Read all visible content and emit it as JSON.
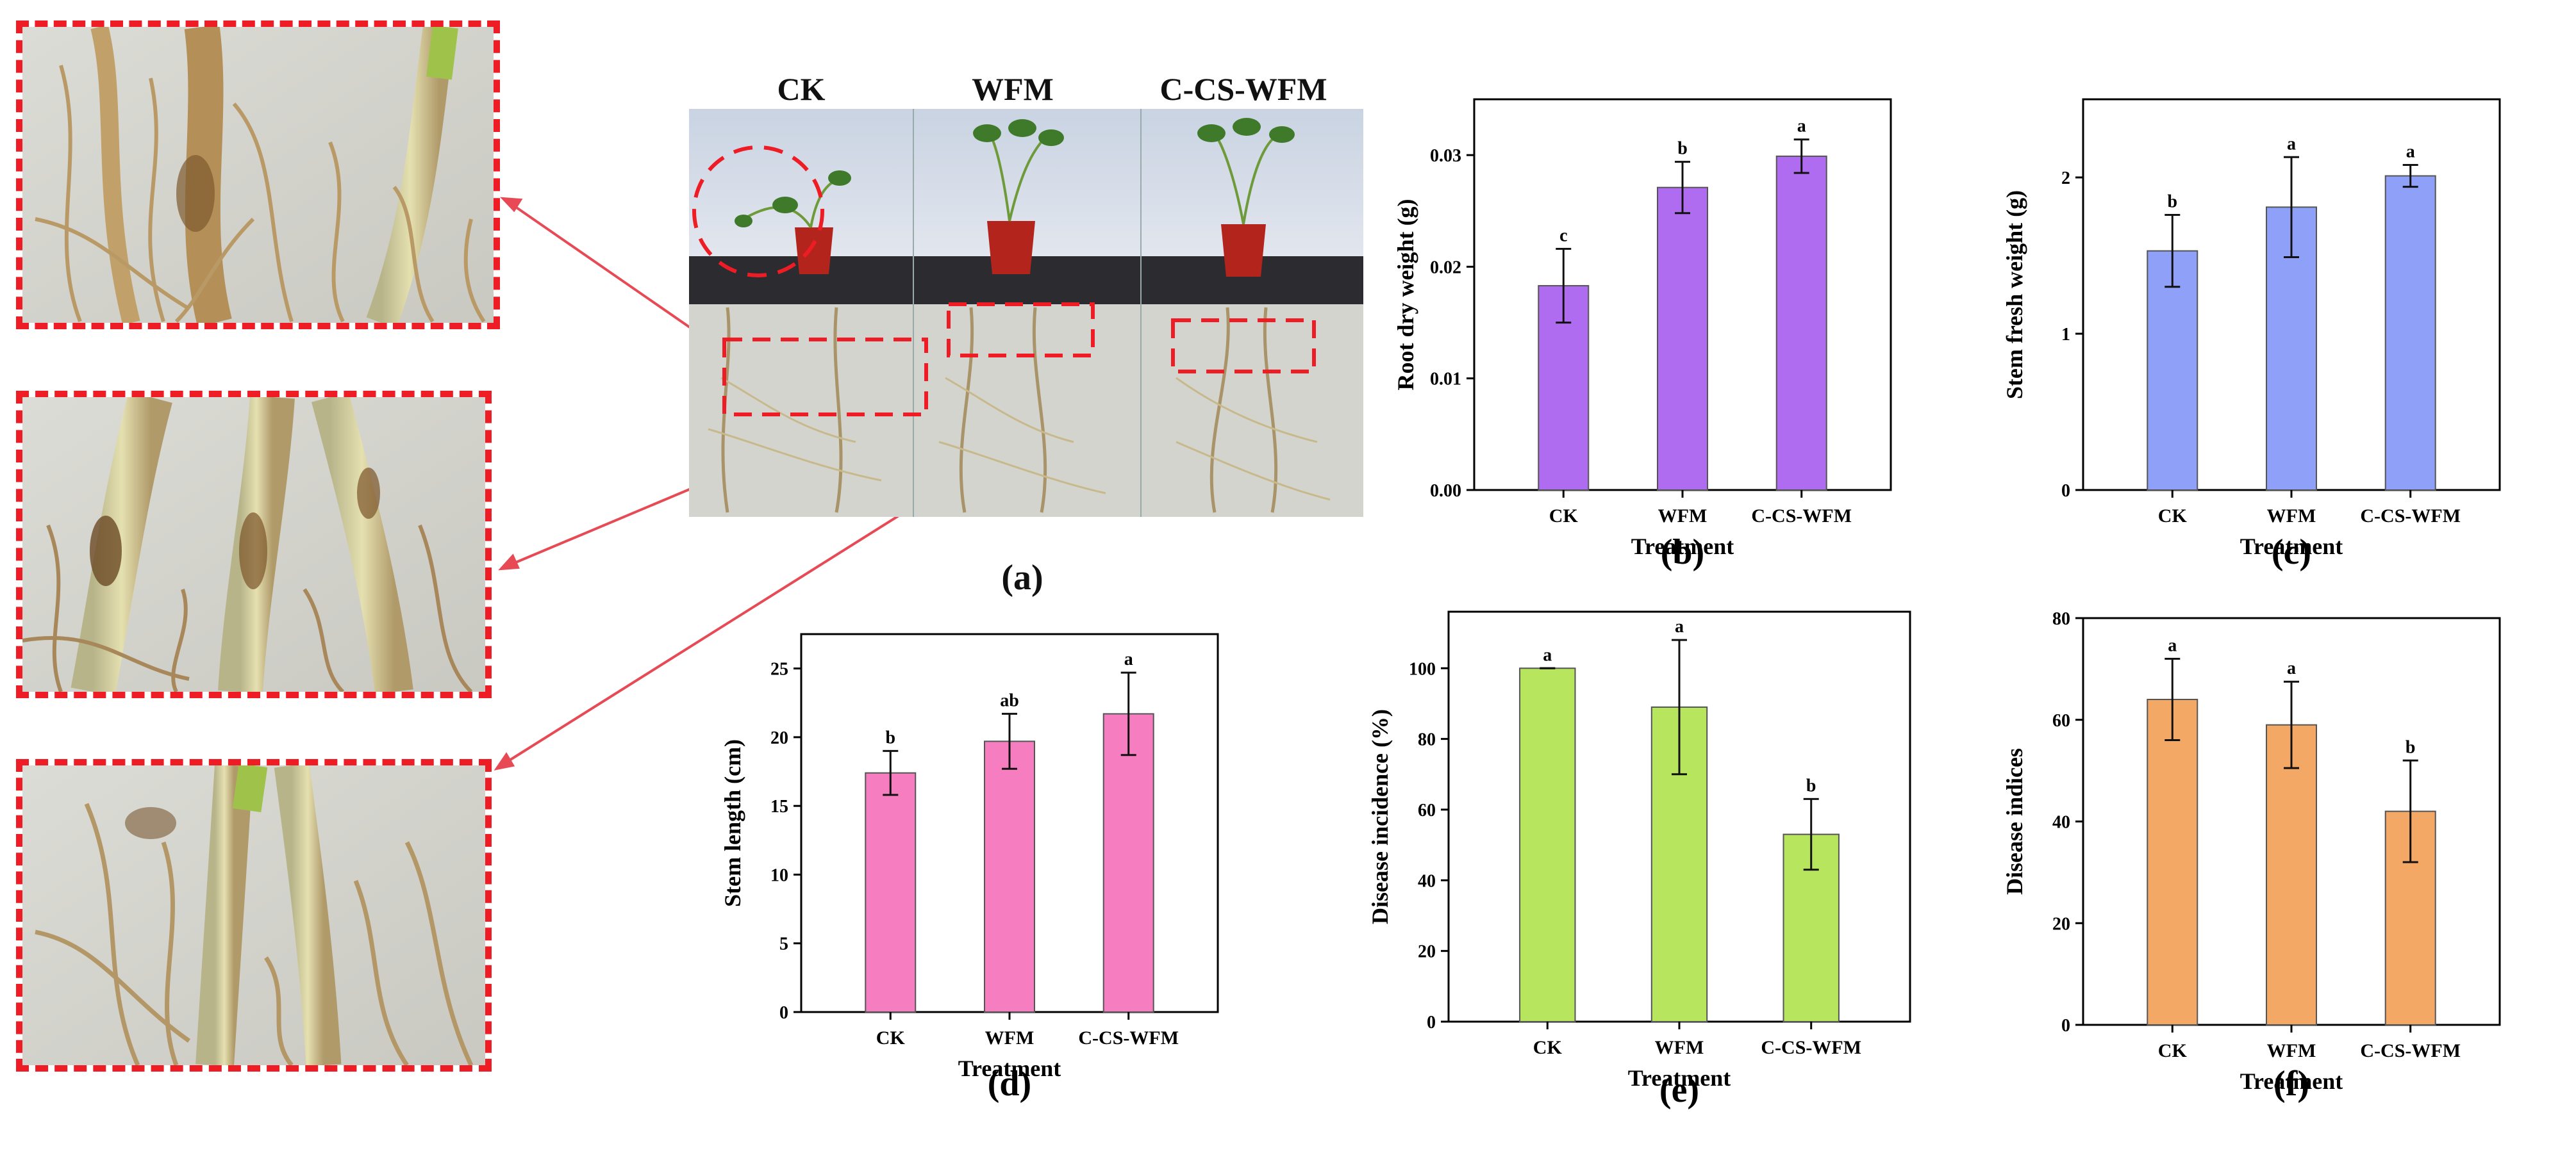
{
  "photo": {
    "headers": [
      "CK",
      "WFM",
      "C-CS-WFM"
    ],
    "panel_label": "(a)"
  },
  "colors": {
    "highlight": "#ee1c25",
    "arrow": "#e84a55",
    "purple": "#b06cf0",
    "blue": "#8ea0f7",
    "pink": "#f67dbf",
    "green": "#b7e65e",
    "orange": "#f4a866"
  },
  "chart_data": [
    {
      "id": "b",
      "panel_label": "(b)",
      "type": "bar",
      "categories": [
        "CK",
        "WFM",
        "C-CS-WFM"
      ],
      "values": [
        0.0183,
        0.0271,
        0.0299
      ],
      "errors": [
        0.0033,
        0.0023,
        0.0015
      ],
      "letters": [
        "c",
        "b",
        "a"
      ],
      "xlabel": "Treatment",
      "ylabel": "Root dry weight (g)",
      "ylim": [
        0,
        0.035
      ],
      "yticks": [
        0,
        0.01,
        0.02,
        0.03
      ],
      "ytick_labels": [
        "0.00",
        "0.01",
        "0.02",
        "0.03"
      ],
      "color": "#b06cf0"
    },
    {
      "id": "c",
      "panel_label": "(c)",
      "type": "bar",
      "categories": [
        "CK",
        "WFM",
        "C-CS-WFM"
      ],
      "values": [
        1.53,
        1.81,
        2.01
      ],
      "errors": [
        0.23,
        0.32,
        0.07
      ],
      "letters": [
        "b",
        "a",
        "a"
      ],
      "xlabel": "Treatment",
      "ylabel": "Stem fresh weight (g)",
      "ylim": [
        0,
        2.5
      ],
      "yticks": [
        0,
        1,
        2
      ],
      "ytick_labels": [
        "0",
        "1",
        "2"
      ],
      "color": "#8ea0f7"
    },
    {
      "id": "d",
      "panel_label": "(d)",
      "type": "bar",
      "categories": [
        "CK",
        "WFM",
        "C-CS-WFM"
      ],
      "values": [
        17.4,
        19.7,
        21.7
      ],
      "errors": [
        1.6,
        2.0,
        3.0
      ],
      "letters": [
        "b",
        "ab",
        "a"
      ],
      "xlabel": "Treatment",
      "ylabel": "Stem length (cm)",
      "ylim": [
        0,
        27.5
      ],
      "yticks": [
        0,
        5,
        10,
        15,
        20,
        25
      ],
      "ytick_labels": [
        "0",
        "5",
        "10",
        "15",
        "20",
        "25"
      ],
      "color": "#f67dbf"
    },
    {
      "id": "e",
      "panel_label": "(e)",
      "type": "bar",
      "categories": [
        "CK",
        "WFM",
        "C-CS-WFM"
      ],
      "values": [
        100,
        89,
        53
      ],
      "errors": [
        0,
        19,
        10
      ],
      "letters": [
        "a",
        "a",
        "b"
      ],
      "xlabel": "Treatment",
      "ylabel": "Disease incidence (%)",
      "ylim": [
        0,
        116
      ],
      "yticks": [
        0,
        20,
        40,
        60,
        80,
        100
      ],
      "ytick_labels": [
        "0",
        "20",
        "40",
        "60",
        "80",
        "100"
      ],
      "color": "#b7e65e"
    },
    {
      "id": "f",
      "panel_label": "(f)",
      "type": "bar",
      "categories": [
        "CK",
        "WFM",
        "C-CS-WFM"
      ],
      "values": [
        64,
        59,
        42
      ],
      "errors": [
        8,
        8.5,
        10
      ],
      "letters": [
        "a",
        "a",
        "b"
      ],
      "xlabel": "Treatment",
      "ylabel": "Disease indices",
      "ylim": [
        0,
        80
      ],
      "yticks": [
        0,
        20,
        40,
        60,
        80
      ],
      "ytick_labels": [
        "0",
        "20",
        "40",
        "60",
        "80"
      ],
      "color": "#f4a866"
    }
  ]
}
